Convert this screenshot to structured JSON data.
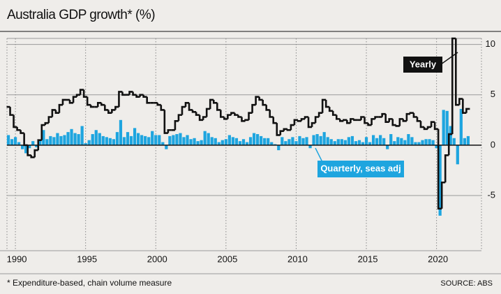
{
  "chart_data": {
    "type": "bar-step",
    "title": "Australia GDP growth* (%)",
    "footnote": "* Expenditure-based, chain volume measure",
    "source": "SOURCE: ABS",
    "x": [
      1989.5,
      1989.75,
      1990,
      1990.25,
      1990.5,
      1990.75,
      1991,
      1991.25,
      1991.5,
      1991.75,
      1992,
      1992.25,
      1992.5,
      1992.75,
      1993,
      1993.25,
      1993.5,
      1993.75,
      1994,
      1994.25,
      1994.5,
      1994.75,
      1995,
      1995.25,
      1995.5,
      1995.75,
      1996,
      1996.25,
      1996.5,
      1996.75,
      1997,
      1997.25,
      1997.5,
      1997.75,
      1998,
      1998.25,
      1998.5,
      1998.75,
      1999,
      1999.25,
      1999.5,
      1999.75,
      2000,
      2000.25,
      2000.5,
      2000.75,
      2001,
      2001.25,
      2001.5,
      2001.75,
      2002,
      2002.25,
      2002.5,
      2002.75,
      2003,
      2003.25,
      2003.5,
      2003.75,
      2004,
      2004.25,
      2004.5,
      2004.75,
      2005,
      2005.25,
      2005.5,
      2005.75,
      2006,
      2006.25,
      2006.5,
      2006.75,
      2007,
      2007.25,
      2007.5,
      2007.75,
      2008,
      2008.25,
      2008.5,
      2008.75,
      2009,
      2009.25,
      2009.5,
      2009.75,
      2010,
      2010.25,
      2010.5,
      2010.75,
      2011,
      2011.25,
      2011.5,
      2011.75,
      2012,
      2012.25,
      2012.5,
      2012.75,
      2013,
      2013.25,
      2013.5,
      2013.75,
      2014,
      2014.25,
      2014.5,
      2014.75,
      2015,
      2015.25,
      2015.5,
      2015.75,
      2016,
      2016.25,
      2016.5,
      2016.75,
      2017,
      2017.25,
      2017.5,
      2017.75,
      2018,
      2018.25,
      2018.5,
      2018.75,
      2019,
      2019.25,
      2019.5,
      2019.75,
      2020,
      2020.25,
      2020.5,
      2020.75,
      2021,
      2021.25,
      2021.5,
      2021.75,
      2022,
      2022.25
    ],
    "series": [
      {
        "name": "Quarterly, seas adj",
        "color": "#1ea5df",
        "kind": "bar",
        "values": [
          1.0,
          0.6,
          0.8,
          0.3,
          -0.4,
          -0.8,
          -0.3,
          0.4,
          -0.2,
          0.5,
          1.5,
          0.6,
          0.9,
          0.8,
          1.2,
          0.9,
          1.0,
          1.3,
          1.6,
          1.2,
          1.1,
          1.9,
          0.2,
          0.5,
          1.1,
          1.5,
          1.2,
          0.9,
          0.8,
          0.7,
          0.6,
          1.3,
          2.5,
          0.8,
          1.3,
          0.9,
          1.7,
          1.2,
          1.0,
          0.9,
          0.8,
          1.4,
          1.0,
          1.0,
          0.3,
          -0.4,
          0.9,
          1.0,
          1.1,
          1.2,
          0.8,
          1.0,
          0.6,
          0.7,
          0.4,
          0.5,
          1.4,
          1.2,
          0.8,
          0.7,
          0.3,
          0.5,
          0.6,
          1.0,
          0.8,
          0.7,
          0.4,
          0.6,
          0.3,
          0.8,
          1.2,
          1.1,
          0.9,
          0.7,
          0.7,
          0.3,
          0.1,
          -0.5,
          0.8,
          0.4,
          0.6,
          0.8,
          0.4,
          0.9,
          0.7,
          0.8,
          -0.3,
          1.0,
          1.1,
          0.9,
          1.3,
          0.8,
          0.6,
          0.4,
          0.6,
          0.6,
          0.5,
          0.8,
          0.9,
          0.4,
          0.5,
          0.3,
          0.8,
          0.3,
          1.0,
          0.7,
          1.0,
          0.7,
          -0.4,
          1.1,
          0.4,
          0.8,
          0.7,
          0.5,
          1.1,
          0.8,
          0.3,
          0.3,
          0.5,
          0.6,
          0.6,
          0.5,
          -0.3,
          -7.0,
          3.5,
          3.4,
          1.9,
          0.7,
          -1.9,
          3.6,
          0.7,
          0.9
        ]
      },
      {
        "name": "Yearly",
        "color": "#111111",
        "kind": "step",
        "values": [
          3.8,
          3.0,
          1.8,
          1.5,
          1.2,
          0.0,
          -1.0,
          -1.2,
          -0.5,
          0.5,
          2.0,
          2.2,
          2.8,
          3.5,
          3.2,
          4.0,
          4.5,
          4.5,
          4.2,
          4.8,
          5.0,
          5.5,
          4.8,
          4.0,
          3.8,
          3.8,
          4.2,
          4.0,
          3.5,
          3.2,
          3.5,
          3.8,
          5.3,
          5.0,
          5.0,
          5.3,
          5.0,
          4.8,
          5.0,
          4.8,
          4.2,
          4.2,
          4.2,
          4.0,
          3.5,
          1.2,
          1.5,
          1.5,
          2.4,
          3.0,
          3.8,
          4.2,
          3.5,
          3.3,
          3.0,
          2.5,
          2.8,
          3.6,
          4.5,
          4.2,
          3.5,
          2.8,
          2.6,
          3.0,
          3.2,
          3.0,
          2.8,
          2.4,
          2.5,
          3.2,
          4.0,
          4.8,
          4.5,
          4.0,
          3.5,
          2.8,
          2.2,
          1.0,
          1.4,
          1.6,
          1.5,
          2.0,
          2.5,
          2.4,
          2.6,
          2.8,
          1.8,
          2.2,
          2.8,
          3.2,
          4.5,
          3.8,
          3.4,
          3.0,
          2.6,
          2.4,
          2.5,
          2.2,
          2.6,
          2.5,
          2.5,
          2.8,
          2.2,
          2.0,
          2.6,
          2.8,
          2.8,
          3.1,
          2.3,
          2.6,
          2.0,
          1.9,
          2.6,
          2.4,
          3.1,
          3.2,
          2.8,
          2.4,
          1.8,
          1.6,
          1.8,
          2.3,
          1.6,
          -6.3,
          -3.7,
          -1.0,
          1.1,
          10.6,
          4.0,
          4.6,
          3.2,
          3.6
        ]
      }
    ],
    "xlim": [
      1989.4,
      2023.2
    ],
    "xticks": [
      1990,
      1995,
      2000,
      2005,
      2010,
      2015,
      2020
    ],
    "ylim": [
      -10.2,
      10.6
    ],
    "yticks": [
      -5,
      0,
      5,
      10
    ],
    "grid": true
  }
}
